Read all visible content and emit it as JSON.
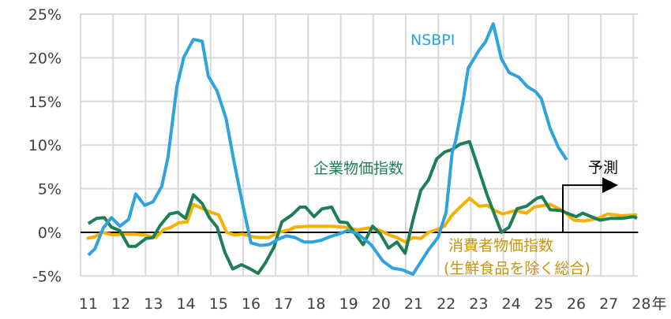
{
  "chart_data": {
    "type": "line",
    "xlabel": "",
    "ylabel": "",
    "x_unit_label": "年",
    "xlim": [
      11,
      28
    ],
    "ylim": [
      -5,
      25
    ],
    "x_ticks": [
      "11",
      "12",
      "13",
      "14",
      "15",
      "16",
      "17",
      "18",
      "19",
      "20",
      "21",
      "22",
      "23",
      "24",
      "25",
      "26",
      "27",
      "28"
    ],
    "y_ticks": [
      "25%",
      "20%",
      "15%",
      "10%",
      "5%",
      "0%",
      "-5%"
    ],
    "y_tick_values": [
      25,
      20,
      15,
      10,
      5,
      0,
      -5
    ],
    "grid": true,
    "forecast": {
      "label": "予測",
      "start": 25.83
    },
    "series": [
      {
        "name": "NSBPI",
        "label_lines": [
          "NSBPI"
        ],
        "color": "#2ea3de",
        "label_color": "#29a3dd",
        "points": [
          [
            11.24,
            -2.6
          ],
          [
            11.44,
            -1.9
          ],
          [
            11.7,
            0.5
          ],
          [
            11.95,
            1.7
          ],
          [
            12.21,
            0.7
          ],
          [
            12.48,
            1.5
          ],
          [
            12.7,
            4.4
          ],
          [
            12.97,
            3.1
          ],
          [
            13.23,
            3.5
          ],
          [
            13.5,
            5.3
          ],
          [
            13.69,
            8.6
          ],
          [
            13.96,
            16.7
          ],
          [
            14.18,
            20.1
          ],
          [
            14.47,
            22.1
          ],
          [
            14.74,
            21.9
          ],
          [
            14.93,
            17.9
          ],
          [
            15.2,
            16.2
          ],
          [
            15.47,
            13.1
          ],
          [
            15.73,
            7.9
          ],
          [
            15.98,
            3.3
          ],
          [
            16.24,
            -1.2
          ],
          [
            16.53,
            -1.5
          ],
          [
            16.8,
            -1.4
          ],
          [
            17.07,
            -0.8
          ],
          [
            17.33,
            -0.4
          ],
          [
            17.6,
            -0.6
          ],
          [
            17.87,
            -1.1
          ],
          [
            18.14,
            -1.1
          ],
          [
            18.4,
            -0.9
          ],
          [
            18.67,
            -0.5
          ],
          [
            18.94,
            -0.2
          ],
          [
            19.2,
            0.2
          ],
          [
            19.5,
            -0.1
          ],
          [
            19.93,
            -1.4
          ],
          [
            20.3,
            -3.3
          ],
          [
            20.59,
            -4.1
          ],
          [
            20.9,
            -4.3
          ],
          [
            21.22,
            -4.8
          ],
          [
            21.7,
            -2.0
          ],
          [
            21.99,
            -0.6
          ],
          [
            22.24,
            2.3
          ],
          [
            22.43,
            9.2
          ],
          [
            22.53,
            10.4
          ],
          [
            22.77,
            15.2
          ],
          [
            22.92,
            18.8
          ],
          [
            23.26,
            20.9
          ],
          [
            23.45,
            21.8
          ],
          [
            23.69,
            23.9
          ],
          [
            23.94,
            19.9
          ],
          [
            24.18,
            18.3
          ],
          [
            24.47,
            17.8
          ],
          [
            24.74,
            16.7
          ],
          [
            25.0,
            16.1
          ],
          [
            25.17,
            15.3
          ],
          [
            25.44,
            11.9
          ],
          [
            25.7,
            9.7
          ],
          [
            25.95,
            8.3
          ]
        ]
      },
      {
        "name": "企業物価指数",
        "label_lines": [
          "企業物価指数"
        ],
        "color": "#1e7f56",
        "label_color": "#1f7f55",
        "points": [
          [
            11.24,
            1.0
          ],
          [
            11.49,
            1.6
          ],
          [
            11.73,
            1.7
          ],
          [
            11.95,
            0.6
          ],
          [
            12.21,
            0.2
          ],
          [
            12.48,
            -1.6
          ],
          [
            12.7,
            -1.6
          ],
          [
            13.01,
            -0.7
          ],
          [
            13.23,
            -0.6
          ],
          [
            13.45,
            0.8
          ],
          [
            13.74,
            2.1
          ],
          [
            13.99,
            2.3
          ],
          [
            14.23,
            1.6
          ],
          [
            14.47,
            4.3
          ],
          [
            14.74,
            3.3
          ],
          [
            14.96,
            1.7
          ],
          [
            15.2,
            0.6
          ],
          [
            15.44,
            -2.3
          ],
          [
            15.68,
            -4.2
          ],
          [
            15.95,
            -3.7
          ],
          [
            16.22,
            -4.2
          ],
          [
            16.46,
            -4.7
          ],
          [
            16.7,
            -3.4
          ],
          [
            16.95,
            -1.7
          ],
          [
            17.19,
            1.2
          ],
          [
            17.5,
            2.0
          ],
          [
            17.75,
            2.9
          ],
          [
            17.92,
            2.9
          ],
          [
            18.18,
            1.8
          ],
          [
            18.43,
            2.7
          ],
          [
            18.72,
            2.9
          ],
          [
            18.96,
            1.2
          ],
          [
            19.2,
            1.1
          ],
          [
            19.45,
            -0.2
          ],
          [
            19.69,
            -1.4
          ],
          [
            19.98,
            0.7
          ],
          [
            20.22,
            -0.2
          ],
          [
            20.47,
            -1.8
          ],
          [
            20.73,
            -1.1
          ],
          [
            20.98,
            -2.4
          ],
          [
            21.22,
            1.4
          ],
          [
            21.46,
            4.8
          ],
          [
            21.7,
            6.0
          ],
          [
            21.95,
            8.4
          ],
          [
            22.19,
            9.2
          ],
          [
            22.43,
            9.5
          ],
          [
            22.67,
            10.1
          ],
          [
            22.96,
            10.4
          ],
          [
            23.5,
            4.3
          ],
          [
            23.94,
            0.0
          ],
          [
            24.18,
            0.6
          ],
          [
            24.42,
            2.7
          ],
          [
            24.71,
            3.0
          ],
          [
            25.03,
            3.9
          ],
          [
            25.19,
            4.1
          ],
          [
            25.44,
            2.6
          ],
          [
            25.76,
            2.5
          ],
          [
            26.24,
            1.8
          ],
          [
            26.44,
            2.2
          ],
          [
            26.97,
            1.4
          ],
          [
            27.29,
            1.6
          ],
          [
            27.63,
            1.6
          ],
          [
            28.01,
            1.8
          ],
          [
            28.11,
            1.6
          ]
        ]
      },
      {
        "name": "消費者物価指数(生鮮食品を除く総合)",
        "label_lines": [
          "消費者物価指数",
          "(生鮮食品を除く総合)"
        ],
        "color": "#f5b000",
        "label_color": "#c8960a",
        "points": [
          [
            11.19,
            -0.7
          ],
          [
            11.44,
            -0.5
          ],
          [
            11.68,
            0.0
          ],
          [
            12.0,
            -0.3
          ],
          [
            12.33,
            -0.2
          ],
          [
            12.65,
            -0.2
          ],
          [
            12.97,
            -0.3
          ],
          [
            13.31,
            -0.6
          ],
          [
            13.55,
            0.3
          ],
          [
            13.79,
            0.6
          ],
          [
            14.03,
            1.1
          ],
          [
            14.28,
            1.2
          ],
          [
            14.47,
            3.2
          ],
          [
            14.76,
            2.7
          ],
          [
            15.0,
            2.3
          ],
          [
            15.25,
            2.0
          ],
          [
            15.49,
            0.0
          ],
          [
            15.73,
            -0.3
          ],
          [
            15.98,
            -0.2
          ],
          [
            16.29,
            -0.5
          ],
          [
            16.53,
            -0.6
          ],
          [
            16.78,
            -0.6
          ],
          [
            17.09,
            0.0
          ],
          [
            17.43,
            0.3
          ],
          [
            17.58,
            0.6
          ],
          [
            17.99,
            0.7
          ],
          [
            18.31,
            0.7
          ],
          [
            18.72,
            0.7
          ],
          [
            19.13,
            0.6
          ],
          [
            19.52,
            0.3
          ],
          [
            19.86,
            0.5
          ],
          [
            20.17,
            0.3
          ],
          [
            20.49,
            -0.3
          ],
          [
            20.73,
            -0.6
          ],
          [
            20.98,
            -1.1
          ],
          [
            21.22,
            -0.6
          ],
          [
            21.46,
            -0.7
          ],
          [
            21.7,
            0.0
          ],
          [
            21.95,
            0.3
          ],
          [
            22.19,
            0.7
          ],
          [
            22.43,
            2.0
          ],
          [
            22.67,
            2.9
          ],
          [
            22.96,
            3.9
          ],
          [
            23.26,
            3.0
          ],
          [
            23.5,
            3.1
          ],
          [
            23.74,
            2.5
          ],
          [
            23.98,
            2.1
          ],
          [
            24.37,
            2.5
          ],
          [
            24.71,
            2.2
          ],
          [
            24.95,
            2.9
          ],
          [
            25.44,
            3.2
          ],
          [
            25.83,
            2.5
          ],
          [
            26.17,
            1.4
          ],
          [
            26.49,
            1.3
          ],
          [
            26.9,
            1.6
          ],
          [
            27.21,
            2.1
          ],
          [
            27.63,
            1.9
          ],
          [
            28.11,
            2.0
          ]
        ]
      }
    ]
  }
}
